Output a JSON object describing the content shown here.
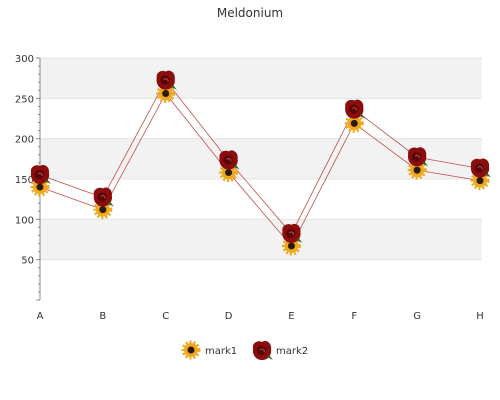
{
  "chart_data": {
    "type": "line",
    "title": "Meldonium",
    "categories": [
      "A",
      "B",
      "C",
      "D",
      "E",
      "F",
      "G",
      "H"
    ],
    "series": [
      {
        "name": "mark1",
        "values": [
          140,
          112,
          256,
          158,
          67,
          219,
          161,
          148
        ],
        "marker": "sunflower-icon"
      },
      {
        "name": "mark2",
        "values": [
          155,
          127,
          272,
          173,
          82,
          236,
          177,
          163
        ],
        "marker": "rose-icon"
      }
    ],
    "ylim": [
      0,
      300
    ],
    "yticks": [
      50,
      100,
      150,
      200,
      250,
      300
    ],
    "grid": true,
    "legend_position": "bottom",
    "colors": {
      "line": "#c0504d",
      "band": "#f2f2f2",
      "axis": "#888888",
      "sunflower_petal": "#f0a81c",
      "sunflower_center": "#2b1a0a",
      "rose": "#8b0d0d"
    }
  }
}
